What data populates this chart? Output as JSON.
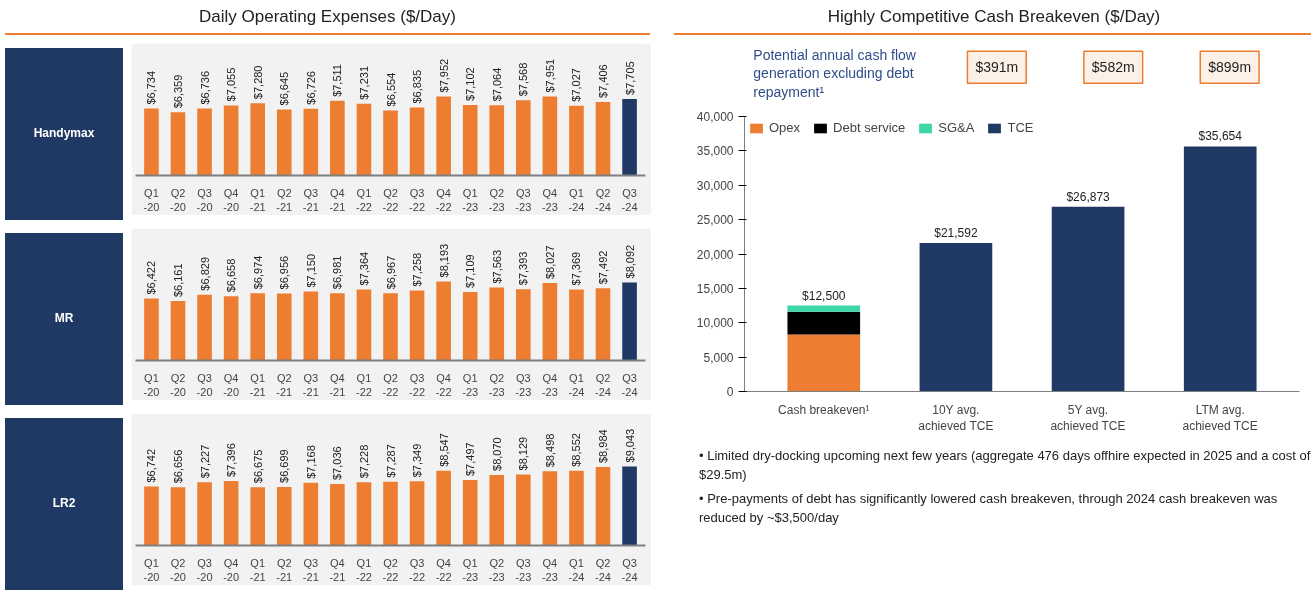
{
  "chart_data": [
    {
      "type": "bar",
      "title": "Daily Operating Expenses ($/Day)",
      "ylabel": "Handymax",
      "categories": [
        "Q1\n-20",
        "Q2\n-20",
        "Q3\n-20",
        "Q4\n-20",
        "Q1\n-21",
        "Q2\n-21",
        "Q3\n-21",
        "Q4\n-21",
        "Q1\n-22",
        "Q2\n-22",
        "Q3\n-22",
        "Q4\n-22",
        "Q1\n-23",
        "Q2\n-23",
        "Q3\n-23",
        "Q4\n-23",
        "Q1\n-24",
        "Q2\n-24",
        "Q3\n-24"
      ],
      "values": [
        6734,
        6359,
        6736,
        7055,
        7280,
        6645,
        6726,
        7511,
        7231,
        6554,
        6835,
        7952,
        7102,
        7064,
        7568,
        7951,
        7027,
        7406,
        7705
      ],
      "value_labels": [
        "$6,734",
        "$6,359",
        "$6,736",
        "$7,055",
        "$7,280",
        "$6,645",
        "$6,726",
        "$7,511",
        "$7,231",
        "$6,554",
        "$6,835",
        "$7,952",
        "$7,102",
        "$7,064",
        "$7,568",
        "$7,951",
        "$7,027",
        "$7,406",
        "$7,705"
      ],
      "colors": [
        "#ed7d31",
        "#ed7d31",
        "#ed7d31",
        "#ed7d31",
        "#ed7d31",
        "#ed7d31",
        "#ed7d31",
        "#ed7d31",
        "#ed7d31",
        "#ed7d31",
        "#ed7d31",
        "#ed7d31",
        "#ed7d31",
        "#ed7d31",
        "#ed7d31",
        "#ed7d31",
        "#ed7d31",
        "#ed7d31",
        "#1f3864"
      ],
      "grid": false
    },
    {
      "type": "bar",
      "ylabel": "MR",
      "categories": [
        "Q1\n-20",
        "Q2\n-20",
        "Q3\n-20",
        "Q4\n-20",
        "Q1\n-21",
        "Q2\n-21",
        "Q3\n-21",
        "Q4\n-21",
        "Q1\n-22",
        "Q2\n-22",
        "Q3\n-22",
        "Q4\n-22",
        "Q1\n-23",
        "Q2\n-23",
        "Q3\n-23",
        "Q4\n-23",
        "Q1\n-24",
        "Q2\n-24",
        "Q3\n-24"
      ],
      "values": [
        6422,
        6161,
        6829,
        6658,
        6974,
        6956,
        7150,
        6981,
        7364,
        6967,
        7258,
        8193,
        7109,
        7563,
        7393,
        8027,
        7369,
        7492,
        8092
      ],
      "value_labels": [
        "$6,422",
        "$6,161",
        "$6,829",
        "$6,658",
        "$6,974",
        "$6,956",
        "$7,150",
        "$6,981",
        "$7,364",
        "$6,967",
        "$7,258",
        "$8,193",
        "$7,109",
        "$7,563",
        "$7,393",
        "$8,027",
        "$7,369",
        "$7,492",
        "$8,092"
      ],
      "colors": [
        "#ed7d31",
        "#ed7d31",
        "#ed7d31",
        "#ed7d31",
        "#ed7d31",
        "#ed7d31",
        "#ed7d31",
        "#ed7d31",
        "#ed7d31",
        "#ed7d31",
        "#ed7d31",
        "#ed7d31",
        "#ed7d31",
        "#ed7d31",
        "#ed7d31",
        "#ed7d31",
        "#ed7d31",
        "#ed7d31",
        "#1f3864"
      ],
      "grid": false
    },
    {
      "type": "bar",
      "ylabel": "LR2",
      "categories": [
        "Q1\n-20",
        "Q2\n-20",
        "Q3\n-20",
        "Q4\n-20",
        "Q1\n-21",
        "Q2\n-21",
        "Q3\n-21",
        "Q4\n-21",
        "Q1\n-22",
        "Q2\n-22",
        "Q3\n-22",
        "Q4\n-22",
        "Q1\n-23",
        "Q2\n-23",
        "Q3\n-23",
        "Q4\n-23",
        "Q1\n-24",
        "Q2\n-24",
        "Q3\n-24"
      ],
      "values": [
        6742,
        6656,
        7227,
        7396,
        6675,
        6699,
        7168,
        7036,
        7228,
        7287,
        7349,
        8547,
        7497,
        8070,
        8129,
        8498,
        8552,
        8984,
        9043
      ],
      "value_labels": [
        "$6,742",
        "$6,656",
        "$7,227",
        "$7,396",
        "$6,675",
        "$6,699",
        "$7,168",
        "$7,036",
        "$7,228",
        "$7,287",
        "$7,349",
        "$8,547",
        "$7,497",
        "$8,070",
        "$8,129",
        "$8,498",
        "$8,552",
        "$8,984",
        "$9,043"
      ],
      "colors": [
        "#ed7d31",
        "#ed7d31",
        "#ed7d31",
        "#ed7d31",
        "#ed7d31",
        "#ed7d31",
        "#ed7d31",
        "#ed7d31",
        "#ed7d31",
        "#ed7d31",
        "#ed7d31",
        "#ed7d31",
        "#ed7d31",
        "#ed7d31",
        "#ed7d31",
        "#ed7d31",
        "#ed7d31",
        "#ed7d31",
        "#1f3864"
      ],
      "grid": false
    },
    {
      "type": "bar",
      "title": "Highly Competitive Cash Breakeven ($/Day)",
      "stacked": true,
      "categories": [
        "Cash breakeven¹",
        "10Y avg.\nachieved TCE",
        "5Y avg.\nachieved TCE",
        "LTM avg.\nachieved TCE"
      ],
      "series": [
        {
          "name": "Opex",
          "color": "#ed7d31",
          "values": [
            8300,
            null,
            null,
            null
          ]
        },
        {
          "name": "Debt service",
          "color": "#000000",
          "values": [
            3300,
            null,
            null,
            null
          ]
        },
        {
          "name": "SG&A",
          "color": "#3dd6a8",
          "values": [
            900,
            null,
            null,
            null
          ]
        },
        {
          "name": "TCE",
          "color": "#1f3864",
          "values": [
            null,
            21592,
            26873,
            35654
          ]
        }
      ],
      "totals": [
        "$12,500",
        "$21,592",
        "$26,873",
        "$35,654"
      ],
      "ylim": [
        0,
        40000
      ],
      "yticks": [
        0,
        {
          "value": 5000,
          "label": "5,000"
        },
        {
          "value": 10000,
          "label": "10,000"
        },
        {
          "value": 15000,
          "label": "15,000"
        },
        {
          "value": 20000,
          "label": "20,000"
        },
        {
          "value": 25000,
          "label": "25,000"
        },
        {
          "value": 30000,
          "label": "30,000"
        },
        {
          "value": 35000,
          "label": "35,000"
        },
        {
          "value": 40000,
          "label": "40,000"
        }
      ],
      "grid": false,
      "legend": "top left",
      "annotations": [
        "Potential annual cash flow generation excluding debt repayment¹",
        "$391m",
        "$582m",
        "$899m",
        "• Limited dry-docking upcoming next few years (aggregate 476 days offhire expected in 2025 and a cost of $29.5m)",
        "• Pre-payments of debt has significantly lowered cash breakeven, through 2024 cash breakeven was reduced by ~$3,500/day"
      ]
    }
  ]
}
